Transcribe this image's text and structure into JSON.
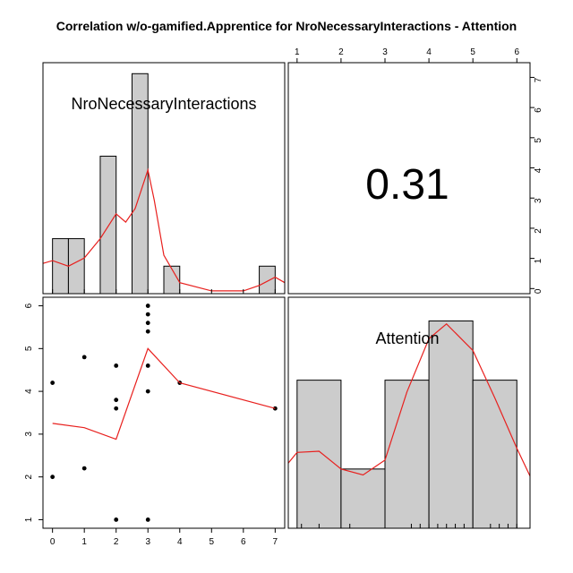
{
  "title": "Correlation w/o-gamified.Apprentice for NroNecessaryInteractions - Attention",
  "chart_data": [
    {
      "type": "bar",
      "panel": "histogram",
      "variable": "NroNecessaryInteractions",
      "label": "NroNecessaryInteractions",
      "bins": [
        [
          0,
          0.5
        ],
        [
          0.5,
          1
        ],
        [
          1.5,
          2
        ],
        [
          2.5,
          3
        ],
        [
          3.5,
          4
        ],
        [
          6.5,
          7
        ]
      ],
      "values": [
        1,
        1,
        2.5,
        4,
        0.5,
        0.5
      ],
      "density_curve": [
        [
          -0.3,
          0.55
        ],
        [
          0,
          0.6
        ],
        [
          0.5,
          0.5
        ],
        [
          1,
          0.65
        ],
        [
          1.5,
          1.0
        ],
        [
          2,
          1.45
        ],
        [
          2.3,
          1.3
        ],
        [
          2.6,
          1.55
        ],
        [
          3,
          2.25
        ],
        [
          3.2,
          1.7
        ],
        [
          3.5,
          0.7
        ],
        [
          4,
          0.2
        ],
        [
          5,
          0.05
        ],
        [
          6,
          0.05
        ],
        [
          6.5,
          0.15
        ],
        [
          7,
          0.3
        ],
        [
          7.3,
          0.2
        ]
      ],
      "xlim": [
        -0.3,
        7.3
      ],
      "ylim": [
        0,
        4.2
      ],
      "tick_marks": [
        0,
        1,
        2,
        3,
        4,
        5,
        6,
        7
      ]
    },
    {
      "type": "scatter",
      "panel": "lower",
      "xlabel": "",
      "ylabel": "",
      "x_ticks": [
        "0",
        "1",
        "2",
        "3",
        "4",
        "5",
        "6",
        "7"
      ],
      "y_ticks": [
        "1",
        "2",
        "3",
        "4",
        "5",
        "6"
      ],
      "xlim": [
        -0.3,
        7.3
      ],
      "ylim": [
        0.8,
        6.2
      ],
      "points": [
        [
          0,
          4.2
        ],
        [
          0,
          2.0
        ],
        [
          1,
          4.8
        ],
        [
          1,
          2.2
        ],
        [
          2,
          4.6
        ],
        [
          2,
          3.8
        ],
        [
          2,
          3.6
        ],
        [
          2,
          1.0
        ],
        [
          3,
          6.0
        ],
        [
          3,
          5.8
        ],
        [
          3,
          5.6
        ],
        [
          3,
          5.4
        ],
        [
          3,
          4.6
        ],
        [
          3,
          4.0
        ],
        [
          3,
          1.0
        ],
        [
          4,
          4.2
        ],
        [
          7,
          3.6
        ]
      ],
      "smooth_line": [
        [
          0,
          3.25
        ],
        [
          1,
          3.15
        ],
        [
          2,
          2.88
        ],
        [
          3,
          5.0
        ],
        [
          4,
          4.2
        ],
        [
          7,
          3.6
        ]
      ]
    },
    {
      "type": "bar",
      "panel": "histogram",
      "variable": "Attention",
      "label": "Attention",
      "bins": [
        [
          1,
          2
        ],
        [
          2,
          3
        ],
        [
          3,
          4
        ],
        [
          4,
          5
        ],
        [
          5,
          6
        ]
      ],
      "values": [
        2.5,
        1,
        2.5,
        3.5,
        2.5
      ],
      "density_curve": [
        [
          0.8,
          1.1
        ],
        [
          1,
          1.28
        ],
        [
          1.5,
          1.3
        ],
        [
          2,
          1.0
        ],
        [
          2.5,
          0.9
        ],
        [
          3,
          1.15
        ],
        [
          3.5,
          2.3
        ],
        [
          4,
          3.2
        ],
        [
          4.4,
          3.45
        ],
        [
          5,
          3.0
        ],
        [
          5.5,
          2.2
        ],
        [
          6,
          1.35
        ],
        [
          6.3,
          0.88
        ]
      ],
      "xlim": [
        0.8,
        6.3
      ],
      "ylim": [
        0,
        3.9
      ],
      "rug": [
        1.1,
        1.5,
        2.2,
        3.6,
        3.8,
        4.0,
        4.2,
        4.4,
        4.6,
        4.8,
        5.4,
        5.6,
        5.8,
        6.0
      ]
    },
    {
      "type": "table",
      "panel": "upper",
      "correlation_label": "0.31",
      "x_ticks": [
        "1",
        "2",
        "3",
        "4",
        "5",
        "6"
      ],
      "y_ticks": [
        "0",
        "1",
        "2",
        "3",
        "4",
        "5",
        "6",
        "7"
      ]
    }
  ]
}
